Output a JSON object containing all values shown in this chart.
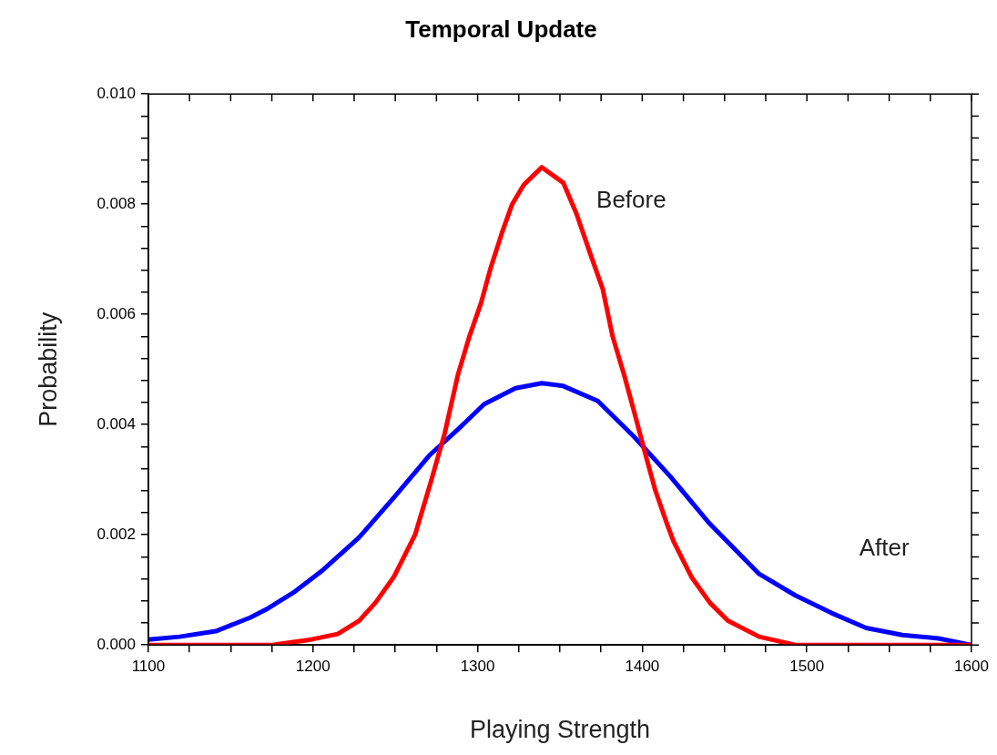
{
  "chart_data": {
    "type": "line",
    "title": "Temporal Update",
    "xlabel": "Playing Strength",
    "ylabel": "Probability",
    "xlim": [
      1100,
      1600
    ],
    "xticks": [
      1100,
      {
        "value": 1125,
        "label": null
      },
      {
        "value": 1150,
        "label": null
      },
      {
        "value": 1175,
        "label": null
      },
      1200,
      {
        "value": 1225,
        "label": null
      },
      {
        "value": 1250,
        "label": null
      },
      {
        "value": 1275,
        "label": null
      },
      1300,
      {
        "value": 1325,
        "label": null
      },
      {
        "value": 1350,
        "label": null
      },
      {
        "value": 1375,
        "label": null
      },
      1400,
      {
        "value": 1425,
        "label": null
      },
      {
        "value": 1450,
        "label": null
      },
      {
        "value": 1475,
        "label": null
      },
      1500,
      {
        "value": 1525,
        "label": null
      },
      {
        "value": 1550,
        "label": null
      },
      {
        "value": 1575,
        "label": null
      },
      1600
    ],
    "ylim": [
      0,
      0.01
    ],
    "yticks": [
      {
        "value": 0,
        "label": "0.000"
      },
      {
        "value": 0.0004,
        "label": null
      },
      {
        "value": 0.0008,
        "label": null
      },
      {
        "value": 0.0012,
        "label": null
      },
      {
        "value": 0.0016,
        "label": null
      },
      {
        "value": 0.002,
        "label": "0.002"
      },
      {
        "value": 0.0024,
        "label": null
      },
      {
        "value": 0.0028,
        "label": null
      },
      {
        "value": 0.0032,
        "label": null
      },
      {
        "value": 0.0036,
        "label": null
      },
      {
        "value": 0.004,
        "label": "0.004"
      },
      {
        "value": 0.0044,
        "label": null
      },
      {
        "value": 0.0048,
        "label": null
      },
      {
        "value": 0.0052,
        "label": null
      },
      {
        "value": 0.0056,
        "label": null
      },
      {
        "value": 0.006,
        "label": "0.006"
      },
      {
        "value": 0.0064,
        "label": null
      },
      {
        "value": 0.0068,
        "label": null
      },
      {
        "value": 0.0072,
        "label": null
      },
      {
        "value": 0.0076,
        "label": null
      },
      {
        "value": 0.008,
        "label": "0.008"
      },
      {
        "value": 0.0084,
        "label": null
      },
      {
        "value": 0.0088,
        "label": null
      },
      {
        "value": 0.0092,
        "label": null
      },
      {
        "value": 0.0096,
        "label": null
      },
      {
        "value": 0.01,
        "label": "0.010"
      }
    ],
    "grid": false,
    "legend": false,
    "marker": "none",
    "line_style": "solid",
    "series": [
      {
        "name": "Before",
        "color": "#ff0000",
        "x": [
          1100,
          1150,
          1175,
          1199,
          1215,
          1228,
          1238,
          1249,
          1262,
          1271,
          1280,
          1288,
          1295,
          1302,
          1308,
          1315,
          1321,
          1328,
          1339,
          1352,
          1360,
          1369,
          1376,
          1382,
          1389,
          1395,
          1402,
          1408,
          1415,
          1419,
          1430,
          1441,
          1452,
          1471,
          1493,
          1515,
          1560,
          1600
        ],
        "values": [
          0,
          0,
          0,
          0.0001,
          0.0002,
          0.00044,
          0.00077,
          0.00123,
          0.002,
          0.0029,
          0.00384,
          0.0049,
          0.0056,
          0.0062,
          0.00685,
          0.0075,
          0.008,
          0.00835,
          0.00867,
          0.00839,
          0.00783,
          0.00705,
          0.00646,
          0.0056,
          0.0049,
          0.00424,
          0.00345,
          0.0028,
          0.0022,
          0.00188,
          0.00123,
          0.00077,
          0.00044,
          0.00015,
          0,
          0,
          0,
          0
        ]
      },
      {
        "name": "After",
        "color": "#0000ff",
        "x": [
          1100,
          1119,
          1141,
          1162,
          1173,
          1189,
          1206,
          1228,
          1249,
          1271,
          1289,
          1304,
          1323,
          1339,
          1352,
          1373,
          1395,
          1417,
          1441,
          1471,
          1493,
          1515,
          1536,
          1558,
          1580,
          1600
        ],
        "values": [
          0.0001,
          0.00015,
          0.00025,
          0.0005,
          0.00067,
          0.00097,
          0.00136,
          0.00195,
          0.00267,
          0.00345,
          0.00394,
          0.00437,
          0.00466,
          0.00475,
          0.0047,
          0.00443,
          0.00378,
          0.00306,
          0.0022,
          0.00129,
          0.0009,
          0.00058,
          0.00031,
          0.00018,
          0.00012,
          0
        ]
      }
    ]
  }
}
